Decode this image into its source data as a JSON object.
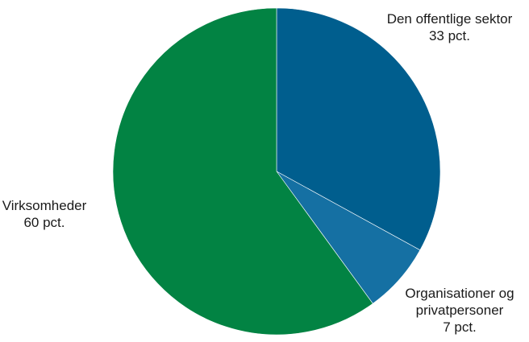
{
  "chart_data": {
    "type": "pie",
    "title": "",
    "slices": [
      {
        "label_lines": [
          "Den offentlige sektor"
        ],
        "value": 33,
        "value_label": "33 pct.",
        "color": "#005E8E"
      },
      {
        "label_lines": [
          "Organisationer og",
          "privatpersoner"
        ],
        "value": 7,
        "value_label": "7 pct.",
        "color": "#1570A3"
      },
      {
        "label_lines": [
          "Virksomheder"
        ],
        "value": 60,
        "value_label": "60 pct.",
        "color": "#028343"
      }
    ],
    "start_angle": "12 o'clock",
    "direction": "clockwise",
    "legend": "none (direct labels)"
  }
}
